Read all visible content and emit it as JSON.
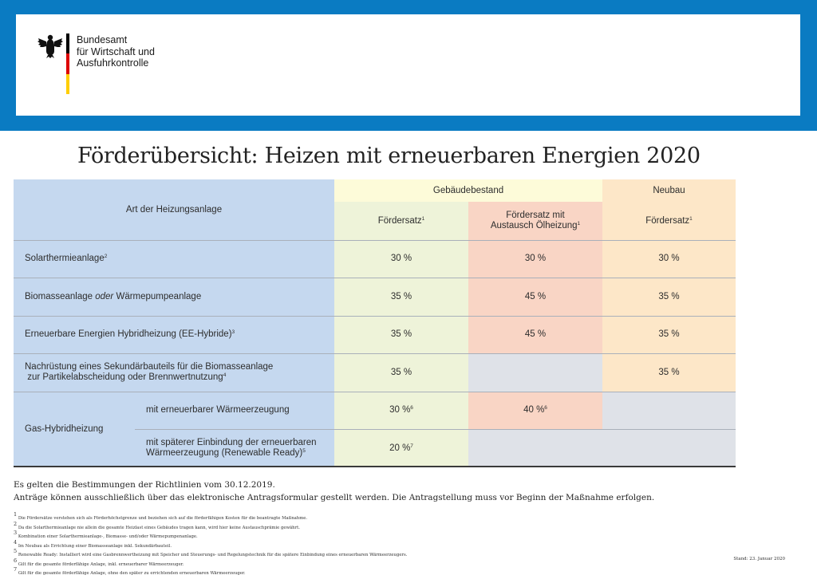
{
  "header": {
    "logo_lines": [
      "Bundesamt",
      "für Wirtschaft und",
      "Ausfuhrkontrolle"
    ],
    "emblem_icon": "federal-eagle-icon",
    "flag_colors": [
      "#000000",
      "#dd0000",
      "#ffce00"
    ],
    "band_color": "#0a7bc2"
  },
  "title": "Förderübersicht: Heizen mit erneuerbaren Energien 2020",
  "table": {
    "col_heading": "Art der Heizungsanlage",
    "group_bestand": "Gebäudebestand",
    "group_neubau": "Neubau",
    "sub_foerdersatz": "Fördersatz",
    "sub_foerdersatz_sup": "1",
    "sub_austausch_line1": "Fördersatz mit",
    "sub_austausch_line2": "Austausch Ölheizung",
    "sub_austausch_sup": "1",
    "sub_neubau": "Fördersatz",
    "sub_neubau_sup": "1",
    "rows": [
      {
        "label": "Solarthermieanlage",
        "sup": "2",
        "bestand": "30 %",
        "austausch": "30 %",
        "neubau": "30 %"
      },
      {
        "label_pre": "Biomasseanlage ",
        "label_em": "oder",
        "label_post": " Wärmepumpeanlage",
        "bestand": "35 %",
        "austausch": "45 %",
        "neubau": "35 %"
      },
      {
        "label": "Erneuerbare Energien Hybridheizung (EE-Hybride)",
        "sup": "3",
        "bestand": "35 %",
        "austausch": "45 %",
        "neubau": "35 %"
      },
      {
        "label_line1": "Nachrüstung eines Sekundärbauteils für die Biomasseanlage",
        "label_line2": "zur Partikelabscheidung oder Brennwertnutzung",
        "sup": "4",
        "bestand": "35 %",
        "austausch": "",
        "neubau": "35 %"
      }
    ],
    "gas": {
      "label": "Gas-Hybridheizung",
      "sub1_label": "mit erneuerbarer Wärmeerzeugung",
      "sub1_bestand": "30 %",
      "sub1_bestand_sup": "6",
      "sub1_austausch": "40 %",
      "sub1_austausch_sup": "6",
      "sub2_label_line1": "mit späterer Einbindung der erneuerbaren",
      "sub2_label_line2": "Wärmeerzeugung (Renewable Ready)",
      "sub2_sup": "5",
      "sub2_bestand": "20 %",
      "sub2_bestand_sup": "7"
    }
  },
  "notes": [
    "Es gelten die Bestimmungen der Richtlinien vom 30.12.2019.",
    "Anträge können ausschließlich über das elektronische Antragsformular gestellt werden. Die Antragstellung muss vor Beginn der Maßnahme erfolgen."
  ],
  "footnotes": [
    {
      "num": "1",
      "text": "Die Fördersätze verstehen sich als Förderhöchstgrenze und beziehen sich auf die förderfähigen Kosten für die beantragte Maßnahme."
    },
    {
      "num": "2",
      "text": "Da die Solarthermieanlage nie allein die gesamte Heizlast eines Gebäudes tragen kann, wird hier keine Austauschprämie gewährt."
    },
    {
      "num": "3",
      "text": "Kombination einer Solarthermieanlage-, Biomasse- und/oder Wärmepumpenanlage."
    },
    {
      "num": "4",
      "text": "Im Neubau als Errichtung einer Biomasseanlage inkl. Sekundärbauteil."
    },
    {
      "num": "5",
      "text": "Renewable Ready: Installiert wird eine Gasbrennwertheizung mit Speicher und Steuerungs- und Regelungstechnik für die spätere Einbindung eines erneuerbaren Wärmeerzeugers."
    },
    {
      "num": "6",
      "text": "Gilt für die gesamte förderfähige Anlage, inkl. erneuerbarer Wärmeerzeuger."
    },
    {
      "num": "7",
      "text": "Gilt für die gesamte förderfähige Anlage, ohne den später zu errichtenden erneuerbaren Wärmeerzeuger."
    }
  ],
  "stand": "Stand: 23. Januar 2020",
  "colors": {
    "label_col": "#c5d8ef",
    "bestand_header": "#fdfbd9",
    "foerdersatz_col": "#eef3d9",
    "austausch_col": "#f9d5c5",
    "neubau_col": "#fde7c8",
    "empty_cell": "#dfe2e8"
  }
}
